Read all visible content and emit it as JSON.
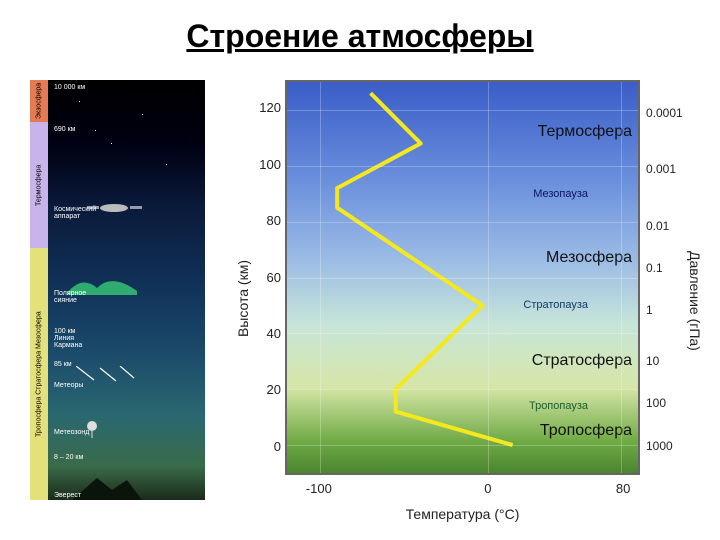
{
  "title": "Строение атмосферы",
  "left_label_strip": [
    {
      "text": "Экзосфера",
      "height_pct": 10,
      "bg": "#e67a52"
    },
    {
      "text": "Термосфера",
      "height_pct": 30,
      "bg": "#c8b4ea"
    },
    {
      "text": "Тропосфера Стратосфера Мезосфера",
      "height_pct": 60,
      "bg": "#e4e07a"
    }
  ],
  "left_annotations": [
    {
      "text": "10 000 км",
      "top_pct": 1
    },
    {
      "text": "690 км",
      "top_pct": 11
    },
    {
      "text": "Космический\nаппарат",
      "top_pct": 30
    },
    {
      "text": "Полярное\nсияние",
      "top_pct": 50
    },
    {
      "text": "100 км\nЛиния\nКармана",
      "top_pct": 59
    },
    {
      "text": "85 км",
      "top_pct": 67
    },
    {
      "text": "Метеоры",
      "top_pct": 72
    },
    {
      "text": "Метеозонд",
      "top_pct": 83
    },
    {
      "text": "8 – 20 км",
      "top_pct": 89
    },
    {
      "text": "Эверест",
      "top_pct": 98
    }
  ],
  "chart": {
    "yaxis_label": "Высота (км)",
    "yaxis_right_label": "Давление (гПа)",
    "xaxis_label": "Температура (°C)",
    "y_min": -10,
    "y_max": 130,
    "x_min": -120,
    "x_max": 90,
    "y_ticks": [
      0,
      20,
      40,
      60,
      80,
      100,
      120
    ],
    "x_ticks": [
      -100,
      0,
      80
    ],
    "y_right_ticks": [
      {
        "y": 0,
        "label": "1000"
      },
      {
        "y": 15,
        "label": "100"
      },
      {
        "y": 30,
        "label": "10"
      },
      {
        "y": 48,
        "label": "1"
      },
      {
        "y": 63,
        "label": "0.1"
      },
      {
        "y": 78,
        "label": "0.01"
      },
      {
        "y": 98,
        "label": "0.001"
      },
      {
        "y": 118,
        "label": "0.0001"
      }
    ],
    "profile_points": [
      {
        "x": 15,
        "y": 0
      },
      {
        "x": -55,
        "y": 12
      },
      {
        "x": -55,
        "y": 20
      },
      {
        "x": -3,
        "y": 50
      },
      {
        "x": -90,
        "y": 85
      },
      {
        "x": -90,
        "y": 92
      },
      {
        "x": -40,
        "y": 108
      },
      {
        "x": -70,
        "y": 126
      }
    ],
    "profile_color": "#f5e81c",
    "profile_width": 4,
    "layer_labels": [
      {
        "text": "Термосфера",
        "y": 112
      },
      {
        "text": "Мезосфера",
        "y": 67
      },
      {
        "text": "Стратосфера",
        "y": 30
      },
      {
        "text": "Тропосфера",
        "y": 5
      }
    ],
    "pause_labels": [
      {
        "text": "Мезопауза",
        "y": 90,
        "color": "#0a1466"
      },
      {
        "text": "Стратопауза",
        "y": 50,
        "color": "#103a6a"
      },
      {
        "text": "Тропопауза",
        "y": 14,
        "color": "#1a5e2c"
      }
    ]
  }
}
